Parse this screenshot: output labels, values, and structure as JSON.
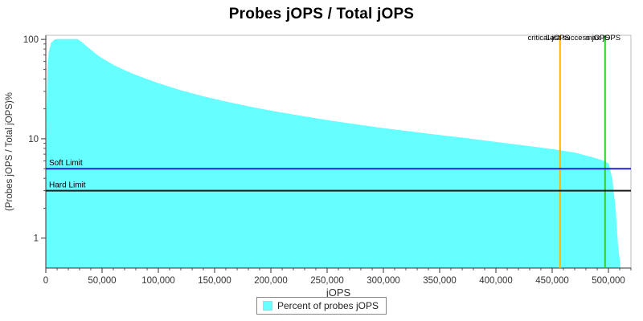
{
  "title": "Probes jOPS / Total jOPS",
  "legend": {
    "label": "Percent of probes jOPS",
    "swatch_color": "#66FFFF"
  },
  "chart_data": {
    "type": "area",
    "title": "Probes jOPS / Total jOPS",
    "xlabel": "jOPS",
    "ylabel": "(Probes jOPS / Total jOPS)%",
    "x_ticks": [
      0,
      50000,
      100000,
      150000,
      200000,
      250000,
      300000,
      350000,
      400000,
      450000,
      500000
    ],
    "y_ticks": [
      1,
      10,
      100
    ],
    "xlim": [
      0,
      520000
    ],
    "ylim_log": [
      0.5,
      110
    ],
    "y_scale": "log",
    "grid": false,
    "legend_position": "bottom",
    "series": [
      {
        "name": "Percent of probes jOPS",
        "color": "#66FFFF",
        "points": [
          [
            0,
            0.5
          ],
          [
            1000,
            20
          ],
          [
            2000,
            55
          ],
          [
            3000,
            75
          ],
          [
            5000,
            92
          ],
          [
            8000,
            99
          ],
          [
            10000,
            100
          ],
          [
            15000,
            100
          ],
          [
            20000,
            100
          ],
          [
            28000,
            100
          ],
          [
            32000,
            93
          ],
          [
            36000,
            85
          ],
          [
            40000,
            78
          ],
          [
            45000,
            70
          ],
          [
            50000,
            64
          ],
          [
            60000,
            55
          ],
          [
            70000,
            48.5
          ],
          [
            80000,
            43.5
          ],
          [
            90000,
            39.5
          ],
          [
            100000,
            36
          ],
          [
            120000,
            30.5
          ],
          [
            140000,
            26.5
          ],
          [
            160000,
            23.5
          ],
          [
            180000,
            21
          ],
          [
            200000,
            19
          ],
          [
            225000,
            17
          ],
          [
            250000,
            15.3
          ],
          [
            275000,
            13.9
          ],
          [
            300000,
            12.7
          ],
          [
            325000,
            11.7
          ],
          [
            350000,
            10.8
          ],
          [
            375000,
            10
          ],
          [
            400000,
            9.2
          ],
          [
            425000,
            8.5
          ],
          [
            450000,
            7.8
          ],
          [
            470000,
            7.2
          ],
          [
            485000,
            6.5
          ],
          [
            495000,
            6.0
          ],
          [
            500000,
            5.6
          ],
          [
            503000,
            4.0
          ],
          [
            506000,
            2.0
          ],
          [
            508000,
            0.9
          ],
          [
            510000,
            0.55
          ]
        ]
      }
    ],
    "reference_lines": {
      "horizontal": [
        {
          "label": "Soft Limit",
          "value": 5,
          "color": "#2222dd"
        },
        {
          "label": "Hard Limit",
          "value": 3,
          "color": "#1a1a1a"
        }
      ],
      "vertical": [
        {
          "label": "critical-jOPS",
          "value": 457000,
          "color": "#ffb400"
        },
        {
          "label": "Last success jOPS",
          "value": 497000,
          "color": "#33cc33"
        },
        {
          "label": "max-jOPS",
          "value": 497000,
          "color": "#33cc33"
        }
      ]
    }
  }
}
